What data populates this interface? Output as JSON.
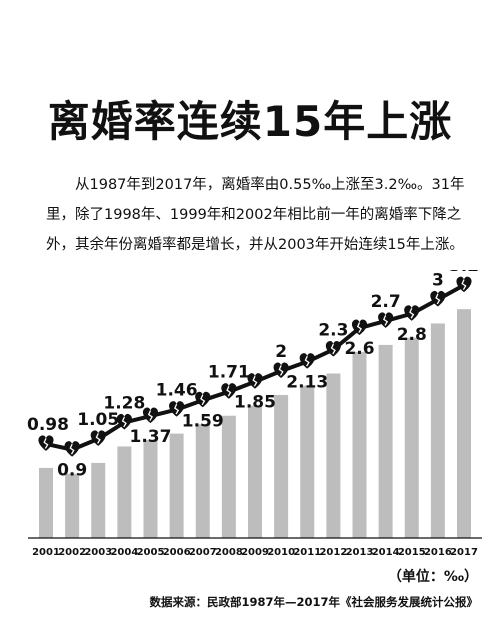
{
  "title": "离婚率连续15年上涨",
  "description": "从1987年到2017年，离婚率由0.55‰上涨至3.2‰。31年里，除了1998年、1999年和2002年相比前一年的离婚率下降之外，其余年份离婚率都是增长，并从2003年开始连续15年上涨。",
  "unit_label": "（单位：‰）",
  "source": "数据来源：民政部1987年—2017年《社会服务发展统计公报》",
  "colors": {
    "bar": "#bdbdbd",
    "line": "#111111",
    "marker": "#111111"
  },
  "icons": {
    "marker": "broken-heart-icon"
  },
  "chart_data": {
    "type": "line",
    "categories": [
      "2001",
      "2002",
      "2003",
      "2004",
      "2005",
      "2006",
      "2007",
      "2008",
      "2009",
      "2010",
      "2011",
      "2012",
      "2013",
      "2014",
      "2015",
      "2016",
      "2017"
    ],
    "values": [
      0.98,
      0.9,
      1.05,
      1.28,
      1.37,
      1.46,
      1.59,
      1.71,
      1.85,
      2,
      2.13,
      2.3,
      2.6,
      2.7,
      2.8,
      3,
      3.2
    ],
    "value_labels": [
      "0.98",
      "0.9",
      "1.05",
      "1.28",
      "1.37",
      "1.46",
      "1.59",
      "1.71",
      "1.85",
      "2",
      "2.13",
      "2.3",
      "2.6",
      "2.7",
      "2.8",
      "3",
      "3.2"
    ],
    "title": "",
    "xlabel": "",
    "ylabel": "",
    "ylim": [
      0,
      3.3
    ],
    "grid": false,
    "bars_behind_line": true
  }
}
